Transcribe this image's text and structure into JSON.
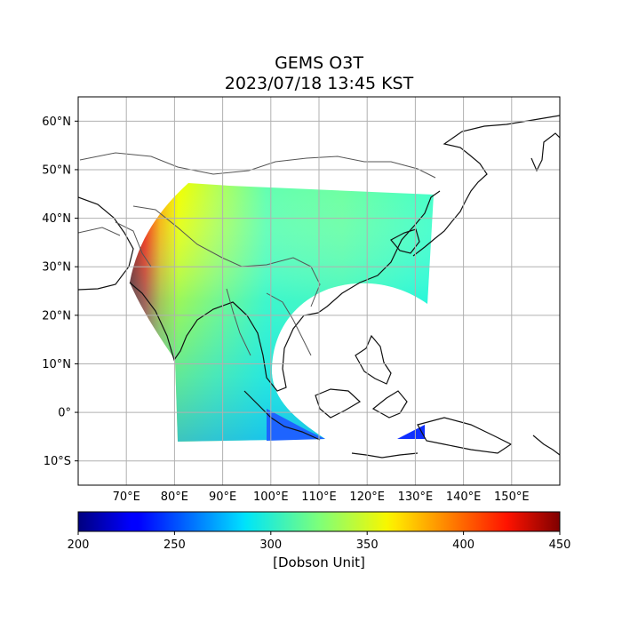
{
  "title": {
    "line1": "GEMS O3T",
    "line2": "2023/07/18 13:45 KST"
  },
  "map": {
    "lon_range": [
      60,
      160
    ],
    "lat_range": [
      -15,
      65
    ],
    "lat_ticks": [
      {
        "value": 60,
        "label": "60°N"
      },
      {
        "value": 50,
        "label": "50°N"
      },
      {
        "value": 40,
        "label": "40°N"
      },
      {
        "value": 30,
        "label": "30°N"
      },
      {
        "value": 20,
        "label": "20°N"
      },
      {
        "value": 10,
        "label": "10°N"
      },
      {
        "value": 0,
        "label": "0°"
      },
      {
        "value": -10,
        "label": "10°S"
      }
    ],
    "lon_ticks": [
      {
        "value": 70,
        "label": "70°E"
      },
      {
        "value": 80,
        "label": "80°E"
      },
      {
        "value": 90,
        "label": "90°E"
      },
      {
        "value": 100,
        "label": "100°E"
      },
      {
        "value": 110,
        "label": "110°E"
      },
      {
        "value": 120,
        "label": "120°E"
      },
      {
        "value": 130,
        "label": "130°E"
      },
      {
        "value": 140,
        "label": "140°E"
      },
      {
        "value": 150,
        "label": "150°E"
      }
    ],
    "grid": true,
    "colormap": "jet"
  },
  "colorbar": {
    "min": 200,
    "max": 450,
    "ticks": [
      {
        "value": 200,
        "label": "200"
      },
      {
        "value": 250,
        "label": "250"
      },
      {
        "value": 300,
        "label": "300"
      },
      {
        "value": 350,
        "label": "350"
      },
      {
        "value": 400,
        "label": "400"
      },
      {
        "value": 450,
        "label": "450"
      }
    ],
    "label": "[Dobson Unit]"
  }
}
